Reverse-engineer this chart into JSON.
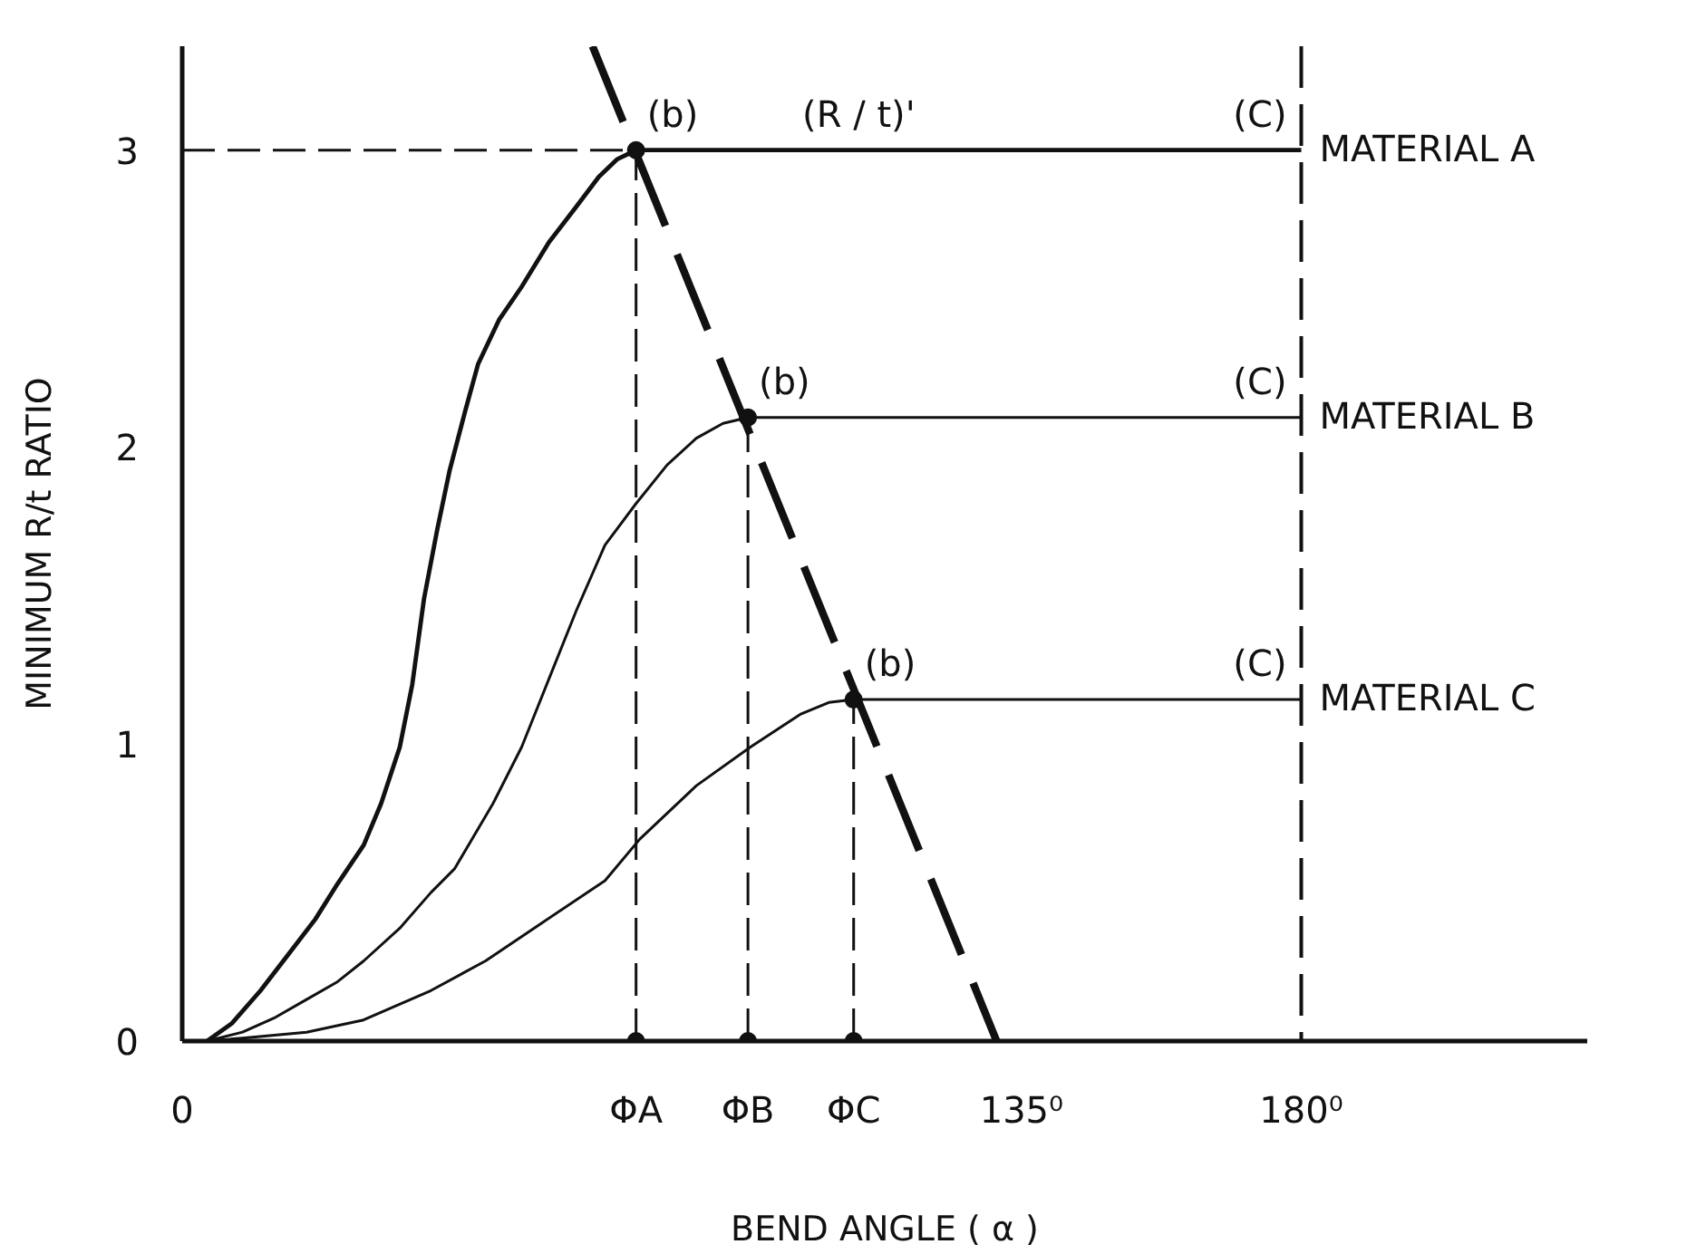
{
  "chart_data": {
    "type": "line",
    "xlabel": "BEND ANGLE ( α )",
    "ylabel": "MINIMUM R/t RATIO",
    "xlim": [
      0,
      226
    ],
    "ylim": [
      0,
      3.35
    ],
    "xticks": [
      0,
      {
        "value": 73,
        "label": "ΦA"
      },
      {
        "value": 91,
        "label": "ΦB"
      },
      {
        "value": 108,
        "label": "ΦC"
      },
      {
        "value": 135,
        "label": "135⁰"
      },
      {
        "value": 180,
        "label": "180⁰"
      }
    ],
    "yticks": [
      0,
      1,
      2,
      3
    ],
    "line_style": "solid",
    "series": [
      {
        "name": "MATERIAL A",
        "color": "#111111",
        "x": [
          4,
          8,
          12.6,
          17,
          21.4,
          25,
          29.2,
          32,
          35,
          37,
          38.9,
          41,
          43,
          45.5,
          47.6,
          51,
          54.6,
          59,
          63.4,
          67,
          70,
          73,
          180
        ],
        "values": [
          0,
          0.06,
          0.17,
          0.29,
          0.41,
          0.53,
          0.66,
          0.8,
          0.99,
          1.2,
          1.49,
          1.72,
          1.92,
          2.12,
          2.28,
          2.43,
          2.54,
          2.69,
          2.81,
          2.91,
          2.97,
          3.0,
          3.0
        ]
      },
      {
        "name": "MATERIAL B",
        "color": "#111111",
        "x": [
          4,
          9.7,
          15,
          20,
          25,
          29.2,
          35,
          40,
          43.8,
          50,
          54.6,
          59,
          63.4,
          68,
          73,
          78,
          82.7,
          87,
          91,
          180
        ],
        "values": [
          0,
          0.03,
          0.08,
          0.14,
          0.2,
          0.27,
          0.38,
          0.5,
          0.58,
          0.8,
          0.99,
          1.22,
          1.45,
          1.67,
          1.81,
          1.94,
          2.03,
          2.08,
          2.1,
          2.1
        ]
      },
      {
        "name": "MATERIAL C",
        "color": "#111111",
        "x": [
          4,
          9.7,
          20,
          29,
          40,
          48.8,
          58,
          68,
          73.6,
          82.7,
          91.4,
          99.4,
          104,
          108,
          180
        ],
        "values": [
          0,
          0.01,
          0.03,
          0.07,
          0.17,
          0.27,
          0.4,
          0.54,
          0.68,
          0.86,
          0.99,
          1.1,
          1.14,
          1.15,
          1.15
        ]
      },
      {
        "color": "#111111",
        "line_style": "dashed",
        "x": [
          66,
          131
        ],
        "values": [
          3.35,
          0
        ]
      },
      {
        "color": "#111111",
        "line_style": "dashed",
        "x": [
          0,
          73
        ],
        "values": [
          3,
          3
        ]
      },
      {
        "color": "#111111",
        "line_style": "dashed",
        "x": [
          73,
          73
        ],
        "values": [
          0,
          3
        ]
      },
      {
        "color": "#111111",
        "line_style": "dashed",
        "x": [
          91,
          91
        ],
        "values": [
          0,
          2.1
        ]
      },
      {
        "color": "#111111",
        "line_style": "dashed",
        "x": [
          108,
          108
        ],
        "values": [
          0,
          1.15
        ]
      },
      {
        "type": "scatter",
        "marker": "circle",
        "color": "#111111",
        "x": [
          73,
          91,
          108,
          73,
          91,
          108
        ],
        "values": [
          3,
          2.1,
          1.15,
          0,
          0,
          0
        ]
      }
    ],
    "ref_lines": [
      {
        "axis": "x",
        "value": 180,
        "line_style": "dashed",
        "color": "#111111"
      }
    ],
    "annotations": [
      {
        "text": "(b)",
        "x": 73,
        "y": 3
      },
      {
        "text": "(R / t)'",
        "x": 98,
        "y": 3
      },
      {
        "text": "(C)",
        "x": 180,
        "y": 3
      },
      {
        "text": "(b)",
        "x": 91,
        "y": 2.1
      },
      {
        "text": "(C)",
        "x": 180,
        "y": 2.1
      },
      {
        "text": "(b)",
        "x": 108,
        "y": 1.15
      },
      {
        "text": "(C)",
        "x": 180,
        "y": 1.15
      }
    ]
  }
}
